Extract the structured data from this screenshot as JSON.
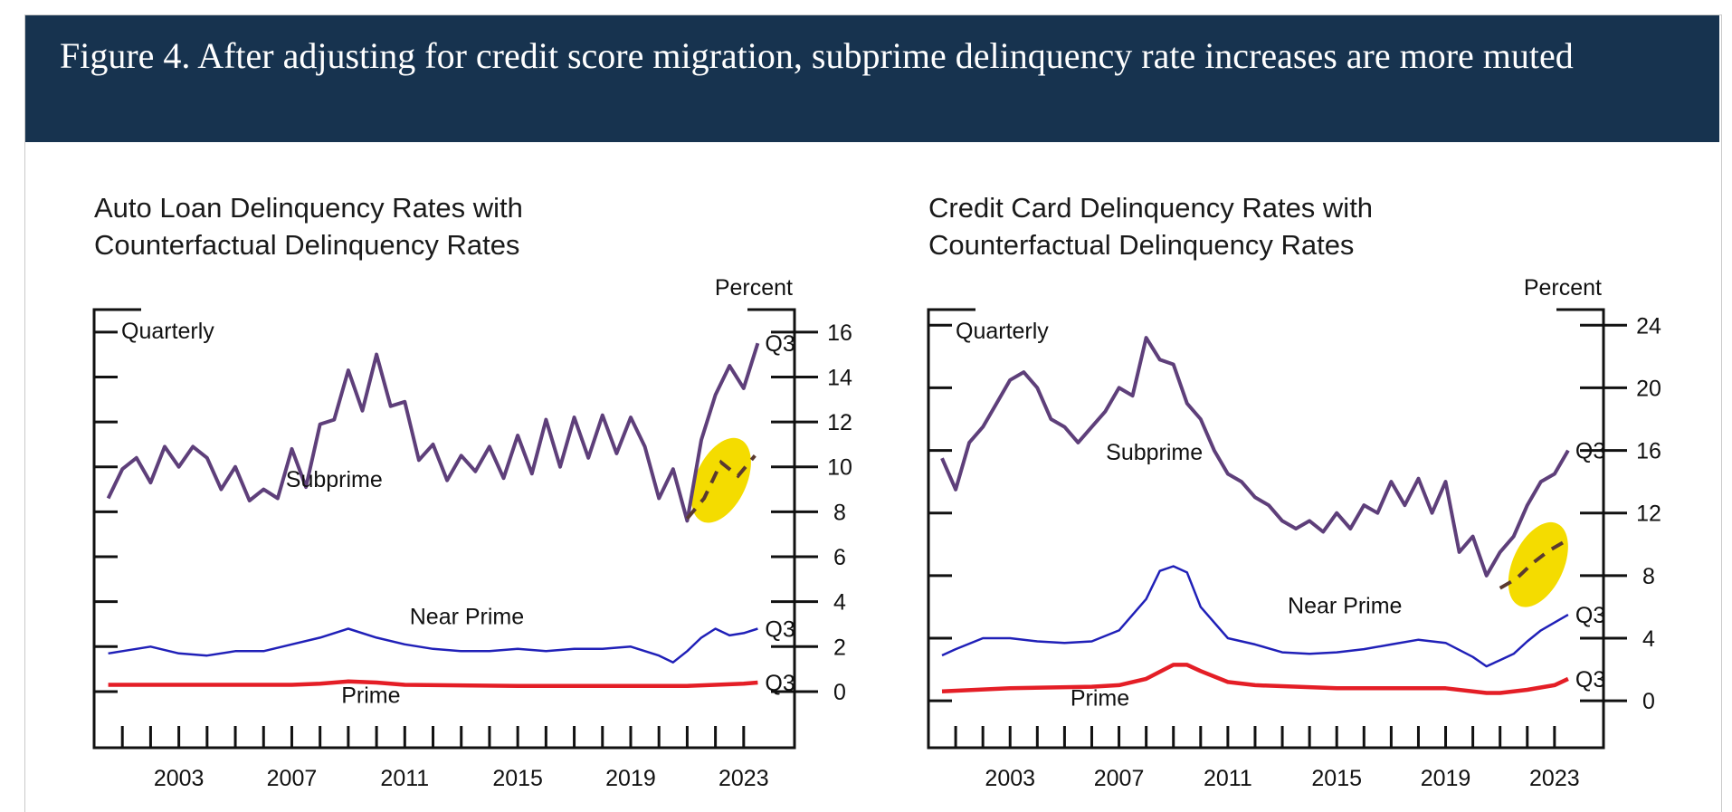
{
  "header": {
    "title": "Figure 4. After adjusting for credit score migration, subprime delinquency rate increases are more muted"
  },
  "colors": {
    "banner": "#17334f",
    "subprime": "#5e3f7a",
    "near_prime": "#2020b8",
    "prime": "#e41e26",
    "highlight": "#f4dc00",
    "counterfactual_dash": "#5a3a30"
  },
  "chart_data": [
    {
      "type": "line",
      "title_lines": [
        "Auto Loan Delinquency Rates with",
        "Counterfactual Delinquency Rates"
      ],
      "frequency_label": "Quarterly",
      "ylabel": "Percent",
      "ylim": [
        -2.5,
        17
      ],
      "yticks": [
        0,
        2,
        4,
        6,
        8,
        10,
        12,
        14,
        16
      ],
      "xlim": [
        2000.0,
        2024.8
      ],
      "xticks": [
        2003,
        2007,
        2011,
        2015,
        2019,
        2023
      ],
      "end_label": "Q3",
      "series": [
        {
          "name": "Subprime",
          "color": "subprime",
          "x": [
            2000.5,
            2001,
            2001.5,
            2002,
            2002.5,
            2003,
            2003.5,
            2004,
            2004.5,
            2005,
            2005.5,
            2006,
            2006.5,
            2007,
            2007.5,
            2008,
            2008.5,
            2009,
            2009.5,
            2010,
            2010.5,
            2011,
            2011.5,
            2012,
            2012.5,
            2013,
            2013.5,
            2014,
            2014.5,
            2015,
            2015.5,
            2016,
            2016.5,
            2017,
            2017.5,
            2018,
            2018.5,
            2019,
            2019.5,
            2020,
            2020.5,
            2021,
            2021.5,
            2022,
            2022.5,
            2023,
            2023.5
          ],
          "values": [
            8.6,
            9.9,
            10.4,
            9.3,
            10.9,
            10.0,
            10.9,
            10.4,
            9.0,
            10.0,
            8.5,
            9.0,
            8.6,
            10.8,
            9.1,
            11.9,
            12.1,
            14.3,
            12.5,
            15.0,
            12.7,
            12.9,
            10.3,
            11.0,
            9.4,
            10.5,
            9.8,
            10.9,
            9.5,
            11.4,
            9.7,
            12.1,
            10.0,
            12.2,
            10.4,
            12.3,
            10.6,
            12.2,
            10.9,
            8.6,
            9.9,
            7.6,
            11.2,
            13.2,
            14.5,
            13.5,
            15.5
          ]
        },
        {
          "name": "Near Prime",
          "color": "near_prime",
          "x": [
            2000.5,
            2001,
            2002,
            2003,
            2004,
            2005,
            2006,
            2007,
            2008,
            2009,
            2010,
            2011,
            2012,
            2013,
            2014,
            2015,
            2016,
            2017,
            2018,
            2019,
            2020,
            2020.5,
            2021,
            2021.5,
            2022,
            2022.5,
            2023,
            2023.5
          ],
          "values": [
            1.7,
            1.8,
            2.0,
            1.7,
            1.6,
            1.8,
            1.8,
            2.1,
            2.4,
            2.8,
            2.4,
            2.1,
            1.9,
            1.8,
            1.8,
            1.9,
            1.8,
            1.9,
            1.9,
            2.0,
            1.6,
            1.3,
            1.8,
            2.4,
            2.8,
            2.5,
            2.6,
            2.8
          ]
        },
        {
          "name": "Prime",
          "color": "prime",
          "x": [
            2000.5,
            2003,
            2007,
            2008,
            2009,
            2010,
            2011,
            2015,
            2019,
            2021,
            2022,
            2023,
            2023.5
          ],
          "values": [
            0.3,
            0.3,
            0.3,
            0.35,
            0.45,
            0.4,
            0.3,
            0.25,
            0.25,
            0.25,
            0.3,
            0.35,
            0.4
          ]
        }
      ],
      "counterfactual": {
        "x": [
          2021,
          2021.6,
          2022.2,
          2022.8,
          2023.4
        ],
        "values": [
          7.7,
          8.6,
          10.2,
          9.6,
          10.5
        ]
      },
      "highlight_center": [
        2022.2,
        9.4
      ],
      "annotations": [
        {
          "text": "Subprime",
          "x": 2008.5,
          "y": 9.1,
          "color": "subprime"
        },
        {
          "text": "Near Prime",
          "x": 2013.2,
          "y": 3.0,
          "color": "near_prime"
        },
        {
          "text": "Prime",
          "x": 2009.8,
          "y": -0.5,
          "color": "prime"
        }
      ]
    },
    {
      "type": "line",
      "title_lines": [
        "Credit Card Delinquency Rates with",
        "Counterfactual Delinquency Rates"
      ],
      "frequency_label": "Quarterly",
      "ylabel": "Percent",
      "ylim": [
        -3.0,
        25
      ],
      "yticks": [
        0,
        4,
        8,
        12,
        16,
        20,
        24
      ],
      "xlim": [
        2000.0,
        2024.8
      ],
      "xticks": [
        2003,
        2007,
        2011,
        2015,
        2019,
        2023
      ],
      "end_label": "Q3",
      "series": [
        {
          "name": "Subprime",
          "color": "subprime",
          "x": [
            2000.5,
            2001,
            2001.5,
            2002,
            2002.5,
            2003,
            2003.5,
            2004,
            2004.5,
            2005,
            2005.5,
            2006,
            2006.5,
            2007,
            2007.5,
            2008,
            2008.5,
            2009,
            2009.5,
            2010,
            2010.5,
            2011,
            2011.5,
            2012,
            2012.5,
            2013,
            2013.5,
            2014,
            2014.5,
            2015,
            2015.5,
            2016,
            2016.5,
            2017,
            2017.5,
            2018,
            2018.5,
            2019,
            2019.5,
            2020,
            2020.5,
            2021,
            2021.5,
            2022,
            2022.5,
            2023,
            2023.5
          ],
          "values": [
            15.5,
            13.5,
            16.5,
            17.5,
            19.0,
            20.5,
            21.0,
            20.0,
            18.0,
            17.5,
            16.5,
            17.5,
            18.5,
            20.0,
            19.5,
            23.2,
            21.8,
            21.5,
            19.0,
            18.0,
            16.0,
            14.5,
            14.0,
            13.0,
            12.5,
            11.5,
            11.0,
            11.5,
            10.8,
            12.0,
            11.0,
            12.5,
            12.0,
            14.0,
            12.5,
            14.2,
            12.0,
            14.0,
            9.5,
            10.5,
            8.0,
            9.5,
            10.5,
            12.5,
            14.0,
            14.5,
            16.0
          ]
        },
        {
          "name": "Near Prime",
          "color": "near_prime",
          "x": [
            2000.5,
            2001,
            2002,
            2003,
            2004,
            2005,
            2006,
            2007,
            2008,
            2008.5,
            2009,
            2009.5,
            2010,
            2011,
            2012,
            2013,
            2014,
            2015,
            2016,
            2017,
            2018,
            2019,
            2020,
            2020.5,
            2021,
            2021.5,
            2022,
            2022.5,
            2023,
            2023.5
          ],
          "values": [
            2.9,
            3.3,
            4.0,
            4.0,
            3.8,
            3.7,
            3.8,
            4.5,
            6.5,
            8.3,
            8.6,
            8.2,
            6.0,
            4.0,
            3.6,
            3.1,
            3.0,
            3.1,
            3.3,
            3.6,
            3.9,
            3.7,
            2.8,
            2.2,
            2.6,
            3.0,
            3.8,
            4.5,
            5.0,
            5.5
          ]
        },
        {
          "name": "Prime",
          "color": "prime",
          "x": [
            2000.5,
            2003,
            2006,
            2007,
            2008,
            2009,
            2009.5,
            2010,
            2011,
            2012,
            2015,
            2019,
            2020.5,
            2021,
            2022,
            2023,
            2023.5
          ],
          "values": [
            0.6,
            0.8,
            0.9,
            1.0,
            1.4,
            2.3,
            2.3,
            1.9,
            1.2,
            1.0,
            0.8,
            0.8,
            0.5,
            0.5,
            0.7,
            1.0,
            1.4
          ]
        }
      ],
      "counterfactual": {
        "x": [
          2021,
          2021.6,
          2022.2,
          2022.8,
          2023.4
        ],
        "values": [
          7.2,
          7.8,
          8.8,
          9.6,
          10.2
        ]
      },
      "highlight_center": [
        2022.4,
        8.7
      ],
      "annotations": [
        {
          "text": "Subprime",
          "x": 2008.3,
          "y": 15.4,
          "color": "subprime"
        },
        {
          "text": "Near Prime",
          "x": 2015.3,
          "y": 5.6,
          "color": "near_prime"
        },
        {
          "text": "Prime",
          "x": 2006.3,
          "y": -0.3,
          "color": "prime"
        }
      ]
    }
  ]
}
